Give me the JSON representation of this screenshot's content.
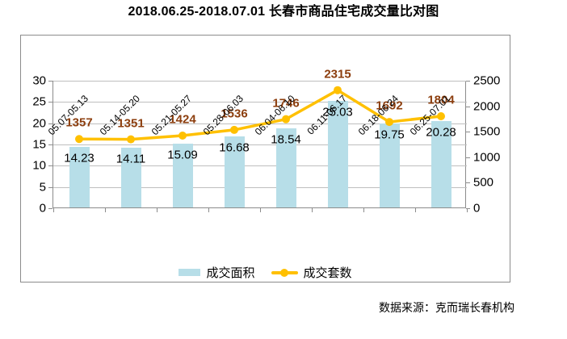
{
  "title": "2018.06.25-2018.07.01 长春市商品住宅成交量比对图",
  "source": "数据来源：克而瑞长春机构",
  "colors": {
    "bar": "#b7dee8",
    "line": "#ffc000",
    "line_label": "#8c3e0e",
    "bar_label": "#000000",
    "grid": "#bfbfbf",
    "axis": "#8c8c8c"
  },
  "chart_data": {
    "type": "bar+line combo",
    "title": "2018.06.25-2018.07.01 长春市商品住宅成交量比对图",
    "categories": [
      "05.07-05.13",
      "05.14-05.20",
      "05.21-05.27",
      "05.28-06.03",
      "06.04-06.10",
      "06.11-06.17",
      "06.18-06.24",
      "06.25-07.01"
    ],
    "series": [
      {
        "name": "成交面积",
        "type": "bar",
        "axis": "left",
        "values": [
          14.23,
          14.11,
          15.09,
          16.68,
          18.54,
          25.03,
          19.75,
          20.28
        ]
      },
      {
        "name": "成交套数",
        "type": "line",
        "axis": "right",
        "values": [
          1357,
          1351,
          1424,
          1536,
          1746,
          2315,
          1692,
          1804
        ]
      }
    ],
    "left_axis": {
      "min": 0,
      "max": 30,
      "step": 5,
      "ticks": [
        0,
        5,
        10,
        15,
        20,
        25,
        30
      ]
    },
    "right_axis": {
      "min": 0,
      "max": 2500,
      "step": 500,
      "ticks": [
        0,
        500,
        1000,
        1500,
        2000,
        2500
      ]
    },
    "grid": true,
    "legend_position": "bottom"
  }
}
